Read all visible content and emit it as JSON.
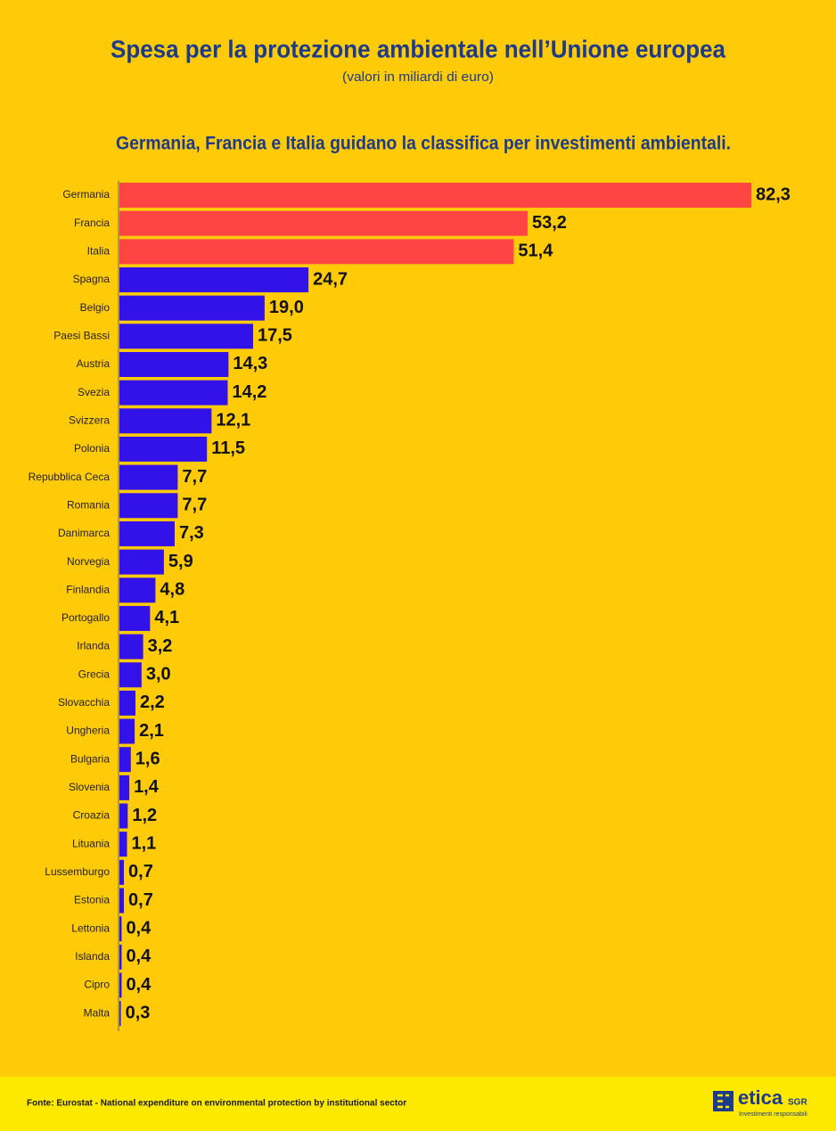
{
  "chart_data": {
    "type": "hbar",
    "title": "Spesa per la protezione ambientale nell’Unione europea",
    "subtitle": "(valori in miliardi di euro)",
    "headline": "Germania, Francia e Italia guidano la classifica per investimenti ambientali.",
    "categories": [
      "Germania",
      "Francia",
      "Italia",
      "Spagna",
      "Belgio",
      "Paesi Bassi",
      "Austria",
      "Svezia",
      "Svizzera",
      "Polonia",
      "Repubblica Ceca",
      "Romania",
      "Danimarca",
      "Norvegia",
      "Finlandia",
      "Portogallo",
      "Irlanda",
      "Grecia",
      "Slovacchia",
      "Ungheria",
      "Bulgaria",
      "Slovenia",
      "Croazia",
      "Lituania",
      "Lussemburgo",
      "Estonia",
      "Lettonia",
      "Islanda",
      "Cipro",
      "Malta"
    ],
    "values": [
      82.3,
      53.2,
      51.4,
      24.7,
      19.0,
      17.5,
      14.3,
      14.2,
      12.1,
      11.5,
      7.7,
      7.7,
      7.3,
      5.9,
      4.8,
      4.1,
      3.2,
      3.0,
      2.2,
      2.1,
      1.6,
      1.4,
      1.2,
      1.1,
      0.7,
      0.7,
      0.4,
      0.4,
      0.4,
      0.3
    ],
    "value_labels": [
      "82,3",
      "53,2",
      "51,4",
      "24,7",
      "19,0",
      "17,5",
      "14,3",
      "14,2",
      "12,1",
      "11,5",
      "7,7",
      "7,7",
      "7,3",
      "5,9",
      "4,8",
      "4,1",
      "3,2",
      "3,0",
      "2,2",
      "2,1",
      "1,6",
      "1,4",
      "1,2",
      "1,1",
      "0,7",
      "0,7",
      "0,4",
      "0,4",
      "0,4",
      "0,3"
    ],
    "colors": [
      "#ff4444",
      "#ff4444",
      "#ff4444",
      "#3312ea",
      "#3312ea",
      "#3312ea",
      "#3312ea",
      "#3312ea",
      "#3312ea",
      "#3312ea",
      "#3312ea",
      "#3312ea",
      "#3312ea",
      "#3312ea",
      "#3312ea",
      "#3312ea",
      "#3312ea",
      "#3312ea",
      "#3312ea",
      "#3312ea",
      "#3312ea",
      "#3312ea",
      "#3312ea",
      "#3312ea",
      "#3312ea",
      "#3312ea",
      "#3312ea",
      "#3312ea",
      "#3312ea",
      "#3312ea"
    ],
    "source": "Fonte: Eurostat - National expenditure on environmental protection by institutional sector"
  },
  "logo": {
    "name": "etica",
    "suffix": "SGR",
    "tagline": "Investimenti responsabili"
  }
}
